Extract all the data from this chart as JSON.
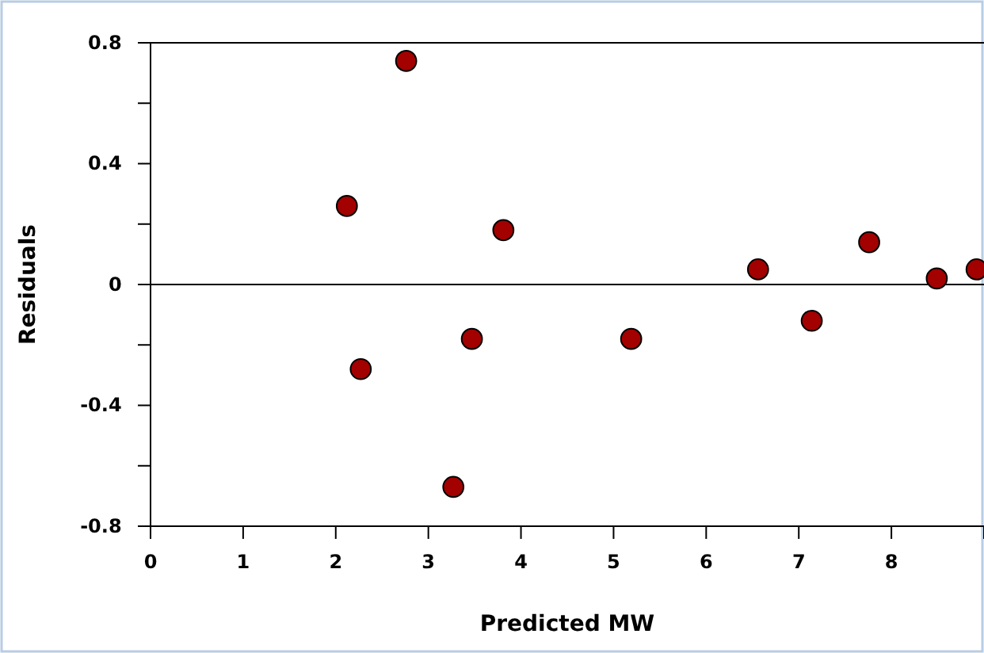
{
  "chart_data": {
    "type": "scatter",
    "xlabel": "Predicted MW",
    "ylabel": "Residuals",
    "x": [
      2.12,
      2.27,
      2.76,
      3.27,
      3.47,
      3.81,
      5.19,
      6.56,
      7.14,
      7.76,
      8.49,
      8.92
    ],
    "values": [
      0.26,
      -0.28,
      0.74,
      -0.67,
      -0.18,
      0.18,
      -0.18,
      0.05,
      -0.12,
      0.14,
      0.02,
      0.05
    ],
    "color": "#a30000",
    "marker": "circle",
    "xlim": [
      0,
      9
    ],
    "xticks": [
      0,
      1,
      2,
      3,
      4,
      5,
      6,
      7,
      8
    ],
    "ylim": [
      -0.8,
      0.8
    ],
    "yticks": [
      -0.8,
      {
        "value": -0.6,
        "label": null
      },
      -0.4,
      {
        "value": -0.2,
        "label": null
      },
      0,
      {
        "value": 0.2,
        "label": null
      },
      0.4,
      {
        "value": 0.6,
        "label": null
      },
      0.8
    ],
    "ref_lines": [
      {
        "axis": "y",
        "value": 0,
        "label": null,
        "color": "#000000"
      }
    ],
    "grid": false
  }
}
